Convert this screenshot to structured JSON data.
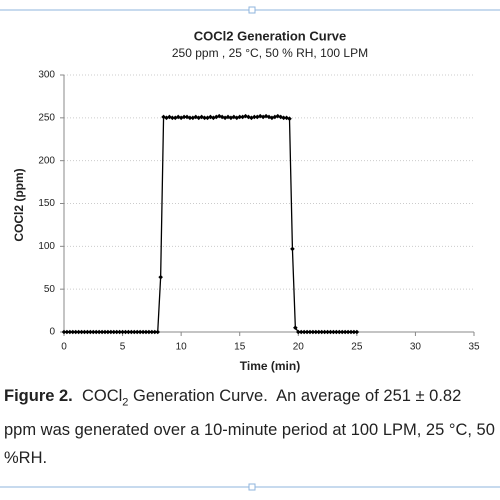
{
  "chart_data": {
    "type": "line",
    "title": "COCl2 Generation Curve",
    "subtitle": "250 ppm , 25 °C, 50 % RH, 100 LPM",
    "x_label": "Time (min)",
    "y_label": "COCl2  (ppm)",
    "xlim": [
      0,
      35
    ],
    "xticks": [
      0,
      5,
      10,
      15,
      20,
      25,
      30,
      35
    ],
    "ylim": [
      0,
      300
    ],
    "yticks": [
      0,
      50,
      100,
      150,
      200,
      250,
      300
    ],
    "grid": true,
    "series": [
      {
        "color": "#000000",
        "x": [
          0,
          0.25,
          0.5,
          0.75,
          1,
          1.25,
          1.5,
          1.75,
          2,
          2.25,
          2.5,
          2.75,
          3,
          3.25,
          3.5,
          3.75,
          4,
          4.25,
          4.5,
          4.75,
          5,
          5.25,
          5.5,
          5.75,
          6,
          6.25,
          6.5,
          6.75,
          7,
          7.25,
          7.5,
          7.75,
          8,
          8.25,
          8.5,
          8.75,
          9,
          9.25,
          9.5,
          9.75,
          10,
          10.25,
          10.5,
          10.75,
          11,
          11.25,
          11.5,
          11.75,
          12,
          12.25,
          12.5,
          12.75,
          13,
          13.25,
          13.5,
          13.75,
          14,
          14.25,
          14.5,
          14.75,
          15,
          15.25,
          15.5,
          15.75,
          16,
          16.25,
          16.5,
          16.75,
          17,
          17.25,
          17.5,
          17.75,
          18,
          18.25,
          18.5,
          18.75,
          19,
          19.25,
          19.5,
          19.75,
          20,
          20.25,
          20.5,
          20.75,
          21,
          21.25,
          21.5,
          21.75,
          22,
          22.25,
          22.5,
          22.75,
          23,
          23.25,
          23.5,
          23.75,
          24,
          24.25,
          24.5,
          24.75,
          25
        ],
        "values": [
          0,
          0,
          0,
          0,
          0,
          0,
          0,
          0,
          0,
          0,
          0,
          0,
          0,
          0,
          0,
          0,
          0,
          0,
          0,
          0,
          0,
          0,
          0,
          0,
          0,
          0,
          0,
          0,
          0,
          0,
          0,
          0,
          0,
          64,
          251,
          250,
          251,
          250,
          250,
          251,
          250,
          251,
          251,
          250,
          250,
          251,
          250,
          251,
          250,
          250,
          251,
          250,
          251,
          252,
          251,
          250,
          251,
          250,
          251,
          250,
          251,
          251,
          252,
          251,
          250,
          251,
          251,
          252,
          251,
          252,
          251,
          250,
          251,
          252,
          251,
          250,
          250,
          249,
          97,
          5,
          0,
          0,
          0,
          0,
          0,
          0,
          0,
          0,
          0,
          0,
          0,
          0,
          0,
          0,
          0,
          0,
          0,
          0,
          0,
          0,
          0
        ]
      }
    ]
  },
  "caption": {
    "label": "Figure 2.",
    "text_before": "COCl",
    "subscript": "2",
    "text_after": " Generation Curve.  An average of 251 ± 0.82 ppm was generated over a 10-minute period at 100 LPM, 25 °C, 50 %RH."
  }
}
